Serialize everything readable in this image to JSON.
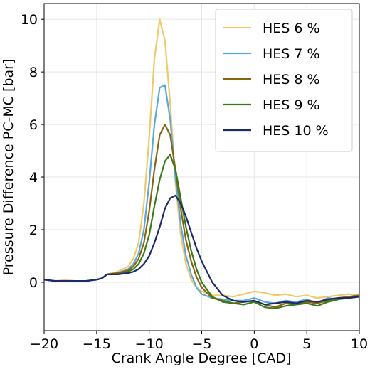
{
  "chart_data": {
    "type": "line",
    "xlabel": "Crank Angle Degree [CAD]",
    "ylabel": "Pressure Difference PC-MC [bar]",
    "x": [
      -20,
      -19,
      -18,
      -17,
      -16,
      -15,
      -14.5,
      -14,
      -13,
      -12,
      -11.5,
      -11,
      -10.5,
      -10,
      -9.5,
      -9,
      -8.5,
      -8,
      -7.5,
      -7,
      -6.5,
      -6,
      -5.5,
      -5,
      -4,
      -3,
      -2,
      -1,
      0,
      1,
      2,
      3,
      4,
      5,
      6,
      7,
      8,
      9,
      10
    ],
    "series": [
      {
        "name": "HES 6 %",
        "color": "#f0c96a",
        "values": [
          0.1,
          0.05,
          0.08,
          0.05,
          0.05,
          0.1,
          0.15,
          0.3,
          0.4,
          0.6,
          0.9,
          1.5,
          3.0,
          5.5,
          8.5,
          10.0,
          9.2,
          6.8,
          3.8,
          1.8,
          0.7,
          0.1,
          -0.2,
          -0.35,
          -0.5,
          -0.5,
          -0.55,
          -0.45,
          -0.35,
          -0.4,
          -0.5,
          -0.45,
          -0.55,
          -0.5,
          -0.6,
          -0.55,
          -0.5,
          -0.45,
          -0.5
        ]
      },
      {
        "name": "HES 7 %",
        "color": "#5aa9dd",
        "values": [
          0.1,
          0.05,
          0.05,
          0.05,
          0.05,
          0.1,
          0.15,
          0.3,
          0.35,
          0.5,
          0.7,
          1.1,
          2.0,
          3.8,
          6.0,
          7.4,
          7.5,
          6.2,
          4.0,
          2.2,
          1.0,
          0.3,
          -0.2,
          -0.45,
          -0.6,
          -0.65,
          -0.7,
          -0.7,
          -0.6,
          -0.75,
          -0.8,
          -0.7,
          -0.75,
          -0.65,
          -0.8,
          -0.6,
          -0.65,
          -0.55,
          -0.5
        ]
      },
      {
        "name": "HES 8 %",
        "color": "#8b6410",
        "values": [
          0.1,
          0.05,
          0.05,
          0.05,
          0.05,
          0.1,
          0.15,
          0.3,
          0.35,
          0.45,
          0.6,
          0.9,
          1.5,
          2.7,
          4.3,
          5.6,
          6.0,
          5.6,
          4.3,
          2.8,
          1.6,
          0.8,
          0.2,
          -0.2,
          -0.6,
          -0.7,
          -0.8,
          -0.75,
          -0.7,
          -0.85,
          -0.95,
          -0.8,
          -0.85,
          -0.75,
          -0.8,
          -0.7,
          -0.6,
          -0.55,
          -0.5
        ]
      },
      {
        "name": "HES 9 %",
        "color": "#3d7a1a",
        "values": [
          0.1,
          0.05,
          0.05,
          0.05,
          0.05,
          0.1,
          0.15,
          0.3,
          0.3,
          0.4,
          0.5,
          0.7,
          1.1,
          1.8,
          2.9,
          3.9,
          4.6,
          4.85,
          4.3,
          3.2,
          2.1,
          1.2,
          0.5,
          0.0,
          -0.55,
          -0.75,
          -0.8,
          -0.85,
          -0.75,
          -0.95,
          -1.0,
          -0.9,
          -0.85,
          -0.8,
          -0.9,
          -0.75,
          -0.65,
          -0.6,
          -0.55
        ]
      },
      {
        "name": "HES 10 %",
        "color": "#1a2a6c",
        "values": [
          0.1,
          0.05,
          0.05,
          0.05,
          0.05,
          0.1,
          0.15,
          0.3,
          0.3,
          0.35,
          0.4,
          0.5,
          0.7,
          1.0,
          1.5,
          2.1,
          2.8,
          3.2,
          3.3,
          3.0,
          2.5,
          1.9,
          1.3,
          0.8,
          0.0,
          -0.5,
          -0.7,
          -0.75,
          -0.7,
          -0.85,
          -0.8,
          -0.75,
          -0.8,
          -0.7,
          -0.75,
          -0.65,
          -0.6,
          -0.6,
          -0.55
        ]
      }
    ],
    "xlim": [
      -20,
      10
    ],
    "ylim": [
      -1.84,
      10.6
    ],
    "xticks": [
      {
        "value": -20,
        "label": "−20"
      },
      {
        "value": -15,
        "label": "−15"
      },
      {
        "value": -10,
        "label": "−10"
      },
      {
        "value": -5,
        "label": "−5"
      },
      0,
      5,
      10
    ],
    "yticks": [
      0,
      2,
      4,
      6,
      8,
      10
    ],
    "grid": true,
    "legend": "upper right"
  }
}
